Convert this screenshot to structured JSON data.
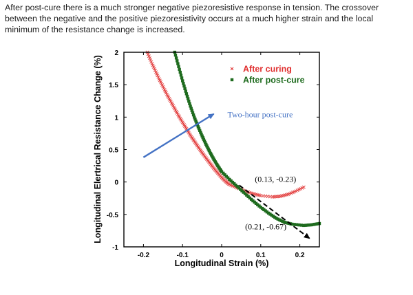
{
  "caption": "After post-cure there is a much stronger negative piezoresistive response in tension. The crossover between the negative and the positive piezoresistivity occurs at a much higher strain and the local minimum of the resistance change is increased.",
  "chart_data": {
    "type": "scatter",
    "title": "",
    "xlabel": "Longitudinal Strain (%)",
    "ylabel": "Longitudinal Elertrical Resistance Change (%)",
    "xlim": [
      -0.25,
      0.25
    ],
    "ylim": [
      -1,
      2
    ],
    "xticks": [
      -0.2,
      -0.1,
      0,
      0.1,
      0.2
    ],
    "xtick_labels": [
      "-0.2",
      "-0.1",
      "0",
      "0.1",
      "0.2"
    ],
    "yticks": [
      -1,
      -0.5,
      0,
      0.5,
      1,
      1.5,
      2
    ],
    "ytick_labels": [
      "-1",
      "-0.5",
      "0",
      "0.5",
      "1",
      "1.5",
      "2"
    ],
    "grid": false,
    "legend_position": "top-right",
    "series": [
      {
        "name": "After curing",
        "color": "#e03030",
        "marker": "x",
        "points": [
          [
            -0.19,
            2.0
          ],
          [
            -0.18,
            1.85
          ],
          [
            -0.17,
            1.72
          ],
          [
            -0.16,
            1.59
          ],
          [
            -0.15,
            1.47
          ],
          [
            -0.14,
            1.35
          ],
          [
            -0.13,
            1.24
          ],
          [
            -0.12,
            1.13
          ],
          [
            -0.11,
            1.02
          ],
          [
            -0.1,
            0.92
          ],
          [
            -0.09,
            0.82
          ],
          [
            -0.08,
            0.72
          ],
          [
            -0.07,
            0.63
          ],
          [
            -0.06,
            0.54
          ],
          [
            -0.05,
            0.45
          ],
          [
            -0.04,
            0.37
          ],
          [
            -0.03,
            0.29
          ],
          [
            -0.02,
            0.21
          ],
          [
            -0.01,
            0.14
          ],
          [
            0.0,
            0.07
          ],
          [
            0.01,
            0.01
          ],
          [
            0.02,
            -0.04
          ],
          [
            0.04,
            -0.09
          ],
          [
            0.06,
            -0.14
          ],
          [
            0.08,
            -0.18
          ],
          [
            0.1,
            -0.21
          ],
          [
            0.13,
            -0.23
          ],
          [
            0.15,
            -0.22
          ],
          [
            0.17,
            -0.19
          ],
          [
            0.19,
            -0.14
          ],
          [
            0.21,
            -0.08
          ]
        ]
      },
      {
        "name": "After post-cure",
        "color": "#1e6b1e",
        "marker": "square",
        "points": [
          [
            -0.12,
            2.0
          ],
          [
            -0.11,
            1.78
          ],
          [
            -0.1,
            1.56
          ],
          [
            -0.09,
            1.36
          ],
          [
            -0.08,
            1.17
          ],
          [
            -0.07,
            1.0
          ],
          [
            -0.06,
            0.85
          ],
          [
            -0.05,
            0.71
          ],
          [
            -0.04,
            0.58
          ],
          [
            -0.03,
            0.46
          ],
          [
            -0.02,
            0.35
          ],
          [
            -0.01,
            0.25
          ],
          [
            0.0,
            0.16
          ],
          [
            0.02,
            0.04
          ],
          [
            0.04,
            -0.07
          ],
          [
            0.06,
            -0.18
          ],
          [
            0.08,
            -0.29
          ],
          [
            0.1,
            -0.39
          ],
          [
            0.12,
            -0.48
          ],
          [
            0.14,
            -0.56
          ],
          [
            0.16,
            -0.62
          ],
          [
            0.18,
            -0.65
          ],
          [
            0.21,
            -0.67
          ],
          [
            0.23,
            -0.66
          ],
          [
            0.25,
            -0.64
          ]
        ]
      }
    ],
    "annotations": [
      {
        "id": "post_cure_arrow",
        "text": "Two-hour post-cure",
        "color": "#4472c4",
        "from": [
          -0.2,
          0.38
        ],
        "to": [
          -0.02,
          1.05
        ],
        "label_at": [
          0.015,
          1.0
        ]
      },
      {
        "id": "curing_min",
        "text": "(0.13, -0.23)",
        "color": "#000000",
        "label_at": [
          0.085,
          0.0
        ]
      },
      {
        "id": "postcure_min",
        "text": "(0.21, -0.67)",
        "color": "#000000",
        "label_at": [
          0.06,
          -0.73
        ]
      },
      {
        "id": "dashed_trend",
        "text": "",
        "color": "#000000",
        "from": [
          0.045,
          -0.05
        ],
        "to": [
          0.225,
          -0.87
        ]
      }
    ]
  }
}
